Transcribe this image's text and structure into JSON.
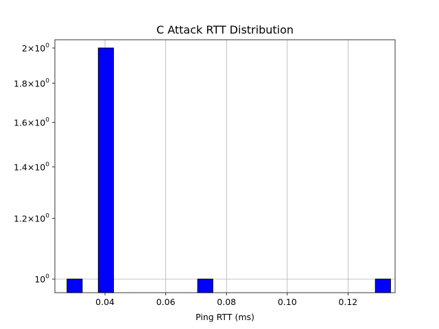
{
  "chart_data": {
    "type": "bar",
    "title": "C Attack RTT Distribution",
    "xlabel": "Ping RTT (ms)",
    "ylabel": "",
    "xlim": [
      0.0235,
      0.1355
    ],
    "ylim": [
      0.96,
      2.05
    ],
    "yscale": "log",
    "grid": "x",
    "bar_color": "#0000ff",
    "edge_color": "#000000",
    "bars": [
      {
        "x0": 0.0275,
        "x1": 0.0325,
        "value": 1
      },
      {
        "x0": 0.0378,
        "x1": 0.0428,
        "value": 2
      },
      {
        "x0": 0.0705,
        "x1": 0.0755,
        "value": 1
      },
      {
        "x0": 0.129,
        "x1": 0.134,
        "value": 1
      }
    ],
    "x_ticks": [
      {
        "value": 0.04,
        "label": "0.04"
      },
      {
        "value": 0.06,
        "label": "0.06"
      },
      {
        "value": 0.08,
        "label": "0.08"
      },
      {
        "value": 0.1,
        "label": "0.10"
      },
      {
        "value": 0.12,
        "label": "0.12"
      }
    ],
    "y_ticks": [
      {
        "value": 1.0,
        "mantissa": "",
        "exponent": "0",
        "base": "10"
      },
      {
        "value": 1.2,
        "mantissa": "1.2",
        "exponent": "0",
        "base": "10"
      },
      {
        "value": 1.4,
        "mantissa": "1.4",
        "exponent": "0",
        "base": "10"
      },
      {
        "value": 1.6,
        "mantissa": "1.6",
        "exponent": "0",
        "base": "10"
      },
      {
        "value": 1.8,
        "mantissa": "1.8",
        "exponent": "0",
        "base": "10"
      },
      {
        "value": 2.0,
        "mantissa": "2",
        "exponent": "0",
        "base": "10"
      }
    ]
  }
}
